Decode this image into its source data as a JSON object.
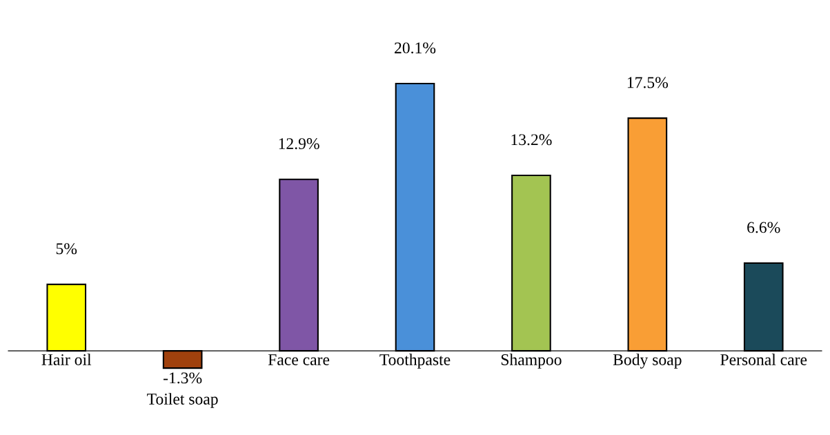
{
  "chart_data": {
    "type": "bar",
    "categories": [
      "Hair oil",
      "Toilet soap",
      "Face care",
      "Toothpaste",
      "Shampoo",
      "Body soap",
      "Personal care"
    ],
    "values": [
      5,
      -1.3,
      12.9,
      20.1,
      13.2,
      17.5,
      6.6
    ],
    "value_labels": [
      "5%",
      "-1.3%",
      "12.9%",
      "20.1%",
      "13.2%",
      "17.5%",
      "6.6%"
    ],
    "colors": [
      "#ffff00",
      "#a0410d",
      "#7f56a6",
      "#4a90d9",
      "#a3c452",
      "#f99e35",
      "#1b4a5a"
    ]
  }
}
